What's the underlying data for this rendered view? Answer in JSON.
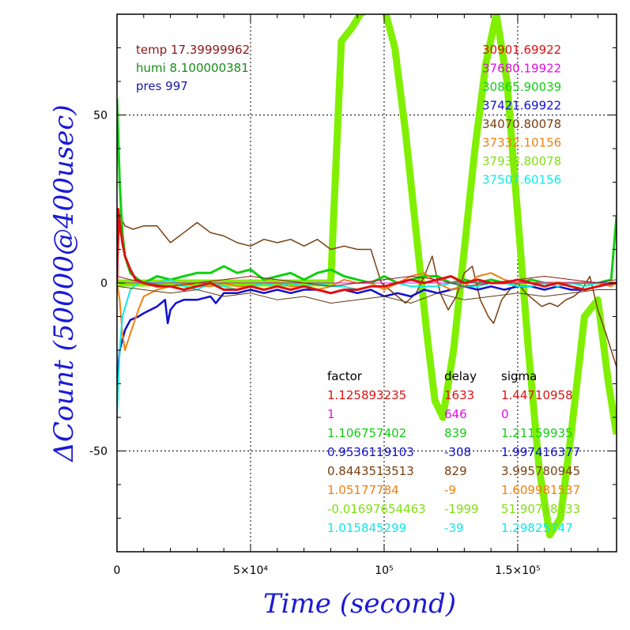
{
  "chart_data": {
    "type": "line",
    "xlabel": "Time (second)",
    "ylabel": "ΔCount (50000@400usec)",
    "xlim": [
      0,
      187000
    ],
    "ylim": [
      -80,
      80
    ],
    "grid": "dotted, at labeled ticks",
    "x_ticks": [
      {
        "value": 0,
        "label": "0"
      },
      {
        "value": 50000,
        "label": "5×10⁴"
      },
      {
        "value": 100000,
        "label": "10⁵"
      },
      {
        "value": 150000,
        "label": "1.5×10⁵"
      }
    ],
    "y_ticks": [
      {
        "value": -50,
        "label": "-50"
      },
      {
        "value": 0,
        "label": "0"
      },
      {
        "value": 50,
        "label": "50"
      }
    ],
    "env": [
      {
        "text": "temp 17.39999962",
        "color": "#8b1a1a"
      },
      {
        "text": "humi 8.100000381",
        "color": "#1a8c1a"
      },
      {
        "text": "pres 997",
        "color": "#1a1aa0"
      }
    ],
    "channel_ids": [
      {
        "text": "30901.69922",
        "color": "#e01010"
      },
      {
        "text": "37680.19922",
        "color": "#e010e0"
      },
      {
        "text": "30865.90039",
        "color": "#10d010"
      },
      {
        "text": "37421.69922",
        "color": "#1010d0"
      },
      {
        "text": "34070.80078",
        "color": "#7a4010"
      },
      {
        "text": "37332.10156",
        "color": "#f08010"
      },
      {
        "text": "37938.80078",
        "color": "#80e010"
      },
      {
        "text": "37507.60156",
        "color": "#10e8e8"
      }
    ],
    "table_headers": [
      "factor",
      "delay",
      "sigma"
    ],
    "table": [
      {
        "factor": "1.125893235",
        "delay": "1633",
        "sigma": "1.44710958",
        "color": "#e01010"
      },
      {
        "factor": "1",
        "delay": "646",
        "sigma": "0",
        "color": "#e010e0"
      },
      {
        "factor": "1.106757402",
        "delay": "839",
        "sigma": "1.21159935",
        "color": "#10d010"
      },
      {
        "factor": "0.9536119103",
        "delay": "-308",
        "sigma": "1.997416377",
        "color": "#1010d0"
      },
      {
        "factor": "0.8443513513",
        "delay": "829",
        "sigma": "3.995780945",
        "color": "#7a4010"
      },
      {
        "factor": "1.05177784",
        "delay": "-9",
        "sigma": "1.609981537",
        "color": "#f08010"
      },
      {
        "factor": "-0.01697654463",
        "delay": "-1999",
        "sigma": "51.90718133",
        "color": "#80e010"
      },
      {
        "factor": "1.015845299",
        "delay": "-39",
        "sigma": "1.29825747",
        "color": "#10e8e8"
      }
    ],
    "series": [
      {
        "color": "#80f000",
        "width": 9,
        "x": [
          500,
          5000,
          10000,
          20000,
          30000,
          40000,
          50000,
          60000,
          65000,
          70000,
          75000,
          80000,
          84000,
          88000,
          91000,
          95000,
          100000,
          104000,
          108000,
          112000,
          116000,
          119000,
          122000,
          126000,
          130000,
          134000,
          138000,
          142000,
          146000,
          150000,
          154000,
          158000,
          162000,
          166000,
          170000,
          175000,
          180000,
          184000,
          187000
        ],
        "y": [
          0,
          0,
          0,
          0,
          0,
          0,
          0,
          0,
          0,
          0,
          0,
          0,
          72,
          76,
          80,
          82,
          82,
          70,
          45,
          15,
          -15,
          -35,
          -40,
          -20,
          10,
          40,
          65,
          80,
          60,
          20,
          -20,
          -55,
          -75,
          -70,
          -45,
          -10,
          -5,
          -30,
          -45
        ]
      },
      {
        "color": "#7a4010",
        "width": 1.5,
        "x": [
          0,
          1000,
          3000,
          6000,
          10000,
          15000,
          20000,
          25000,
          30000,
          35000,
          40000,
          45000,
          50000,
          55000,
          60000,
          65000,
          70000,
          75000,
          80000,
          85000,
          90000,
          95000,
          97000,
          99000,
          102000,
          105000,
          108000,
          112000,
          115000,
          118000,
          121000,
          124000,
          127000,
          130000,
          133000,
          136000,
          139000,
          141000,
          144000,
          147000,
          150000,
          153000,
          156000,
          159000,
          162000,
          165000,
          168000,
          171000,
          174000,
          177000,
          180000,
          183000,
          187000
        ],
        "y": [
          0,
          20,
          17,
          16,
          17,
          17,
          12,
          15,
          18,
          15,
          14,
          12,
          11,
          13,
          12,
          13,
          11,
          13,
          10,
          11,
          10,
          10,
          5,
          0,
          -2,
          -4,
          -6,
          -3,
          2,
          8,
          -3,
          -8,
          -4,
          3,
          5,
          -5,
          -10,
          -12,
          -5,
          -2,
          0,
          -3,
          -5,
          -7,
          -6,
          -7,
          -5,
          -4,
          -2,
          2,
          -8,
          -15,
          -25
        ]
      },
      {
        "color": "#10d010",
        "width": 3,
        "x": [
          0,
          1000,
          2000,
          3000,
          5000,
          8000,
          10000,
          15000,
          20000,
          25000,
          30000,
          35000,
          40000,
          45000,
          50000,
          55000,
          60000,
          65000,
          70000,
          75000,
          80000,
          85000,
          90000,
          95000,
          100000,
          105000,
          110000,
          115000,
          120000,
          125000,
          130000,
          135000,
          140000,
          145000,
          150000,
          155000,
          160000,
          165000,
          170000,
          175000,
          180000,
          185000,
          187000
        ],
        "y": [
          55,
          30,
          15,
          8,
          3,
          1,
          0,
          2,
          1,
          2,
          3,
          3,
          5,
          3,
          4,
          1,
          2,
          3,
          1,
          3,
          4,
          2,
          1,
          0,
          2,
          0,
          1,
          2,
          2,
          0,
          1,
          0,
          1,
          0,
          0,
          1,
          0,
          0,
          0,
          0,
          0,
          1,
          20
        ]
      },
      {
        "color": "#1010d0",
        "width": 2.5,
        "x": [
          0,
          500,
          1000,
          2000,
          3000,
          5000,
          8000,
          10000,
          15000,
          18000,
          19000,
          20000,
          22000,
          25000,
          30000,
          35000,
          37000,
          40000,
          45000,
          50000,
          55000,
          60000,
          65000,
          70000,
          75000,
          80000,
          85000,
          90000,
          95000,
          100000,
          105000,
          110000,
          115000,
          120000,
          125000,
          130000,
          135000,
          140000,
          145000,
          150000,
          155000,
          160000,
          165000,
          170000,
          175000,
          180000,
          187000
        ],
        "y": [
          -35,
          -25,
          -20,
          -17,
          -14,
          -11,
          -10,
          -9,
          -7,
          -5,
          -12,
          -8,
          -6,
          -5,
          -5,
          -4,
          -6,
          -3,
          -3,
          -2,
          -3,
          -2,
          -3,
          -2,
          -2,
          -3,
          -2,
          -3,
          -2,
          -4,
          -3,
          -4,
          -2,
          -3,
          -2,
          -1,
          -2,
          -1,
          -2,
          -1,
          -1,
          -2,
          -1,
          -2,
          -2,
          -1,
          0
        ]
      },
      {
        "color": "#f08010",
        "width": 2,
        "x": [
          0,
          1000,
          2000,
          3000,
          5000,
          8000,
          10000,
          15000,
          20000,
          25000,
          30000,
          35000,
          40000,
          45000,
          50000,
          55000,
          60000,
          65000,
          70000,
          75000,
          80000,
          85000,
          90000,
          95000,
          100000,
          105000,
          110000,
          115000,
          120000,
          125000,
          130000,
          135000,
          140000,
          145000,
          150000,
          155000,
          160000,
          165000,
          170000,
          175000,
          180000,
          185000,
          187000
        ],
        "y": [
          0,
          -5,
          -15,
          -20,
          -15,
          -8,
          -4,
          -2,
          -1,
          0,
          -1,
          -1,
          0,
          -1,
          -1,
          0,
          0,
          -1,
          -1,
          -2,
          -1,
          1,
          0,
          0,
          -2,
          0,
          2,
          3,
          0,
          -2,
          -1,
          2,
          3,
          1,
          0,
          0,
          0,
          0,
          0,
          0,
          0,
          -1,
          0
        ]
      },
      {
        "color": "#10e8e8",
        "width": 2,
        "x": [
          0,
          1000,
          2000,
          5000,
          8000,
          10000,
          15000,
          20000,
          25000,
          30000,
          35000,
          40000,
          45000,
          50000,
          55000,
          60000,
          65000,
          70000,
          75000,
          80000,
          85000,
          90000,
          95000,
          100000,
          105000,
          110000,
          115000,
          120000,
          125000,
          130000,
          135000,
          140000,
          145000,
          150000,
          155000,
          160000,
          165000,
          170000,
          175000,
          180000,
          185000,
          187000
        ],
        "y": [
          -40,
          -20,
          -10,
          -2,
          0,
          0,
          0,
          1,
          -1,
          -2,
          0,
          -1,
          -2,
          -1,
          0,
          -1,
          0,
          -1,
          0,
          -1,
          -1,
          -2,
          -1,
          -1,
          0,
          -1,
          -1,
          -1,
          0,
          -1,
          -1,
          0,
          0,
          -1,
          -1,
          0,
          -1,
          0,
          -1,
          0,
          0,
          0
        ]
      },
      {
        "color": "#e010e0",
        "width": 1,
        "x": [
          0,
          10000,
          20000,
          30000,
          40000,
          50000,
          60000,
          70000,
          80000,
          90000,
          100000,
          110000,
          120000,
          130000,
          140000,
          150000,
          160000,
          170000,
          180000,
          187000
        ],
        "y": [
          0,
          0,
          0,
          0,
          0,
          0,
          0,
          0,
          0,
          0,
          0,
          0,
          0,
          0,
          0,
          0,
          0,
          0,
          0,
          0
        ]
      },
      {
        "color": "#8b1a1a",
        "width": 1,
        "x": [
          0,
          5000,
          10000,
          20000,
          30000,
          40000,
          50000,
          60000,
          70000,
          80000,
          90000,
          100000,
          110000,
          120000,
          130000,
          140000,
          150000,
          160000,
          170000,
          180000,
          187000
        ],
        "y": [
          2,
          1,
          0,
          -1,
          0,
          1,
          2,
          1,
          0,
          -1,
          0,
          1,
          2,
          1,
          -1,
          0,
          1,
          2,
          1,
          0,
          1
        ]
      },
      {
        "color": "#5a3a10",
        "width": 1,
        "x": [
          0,
          10000,
          20000,
          30000,
          40000,
          50000,
          60000,
          70000,
          80000,
          90000,
          100000,
          110000,
          120000,
          130000,
          140000,
          150000,
          160000,
          170000,
          180000,
          187000
        ],
        "y": [
          -1,
          -2,
          -3,
          -2,
          -4,
          -3,
          -5,
          -4,
          -6,
          -5,
          -4,
          -6,
          -3,
          -5,
          -4,
          -3,
          -4,
          -3,
          -2,
          -2
        ]
      },
      {
        "color": "#e01010",
        "width": 3,
        "x": [
          0,
          500,
          1000,
          2000,
          3000,
          5000,
          7000,
          10000,
          15000,
          20000,
          25000,
          30000,
          35000,
          40000,
          45000,
          50000,
          55000,
          60000,
          65000,
          70000,
          75000,
          80000,
          85000,
          90000,
          95000,
          100000,
          105000,
          110000,
          115000,
          120000,
          125000,
          130000,
          135000,
          140000,
          145000,
          150000,
          155000,
          160000,
          165000,
          170000,
          175000,
          180000,
          185000,
          187000
        ],
        "y": [
          0,
          22,
          18,
          12,
          8,
          4,
          1,
          0,
          -1,
          -1,
          -2,
          -1,
          0,
          -2,
          -2,
          -1,
          -2,
          -1,
          -2,
          -1,
          -2,
          -3,
          -2,
          -2,
          -1,
          -1,
          0,
          1,
          0,
          1,
          2,
          0,
          1,
          0,
          0,
          1,
          0,
          -1,
          0,
          -1,
          -2,
          -1,
          0,
          0
        ]
      }
    ]
  }
}
